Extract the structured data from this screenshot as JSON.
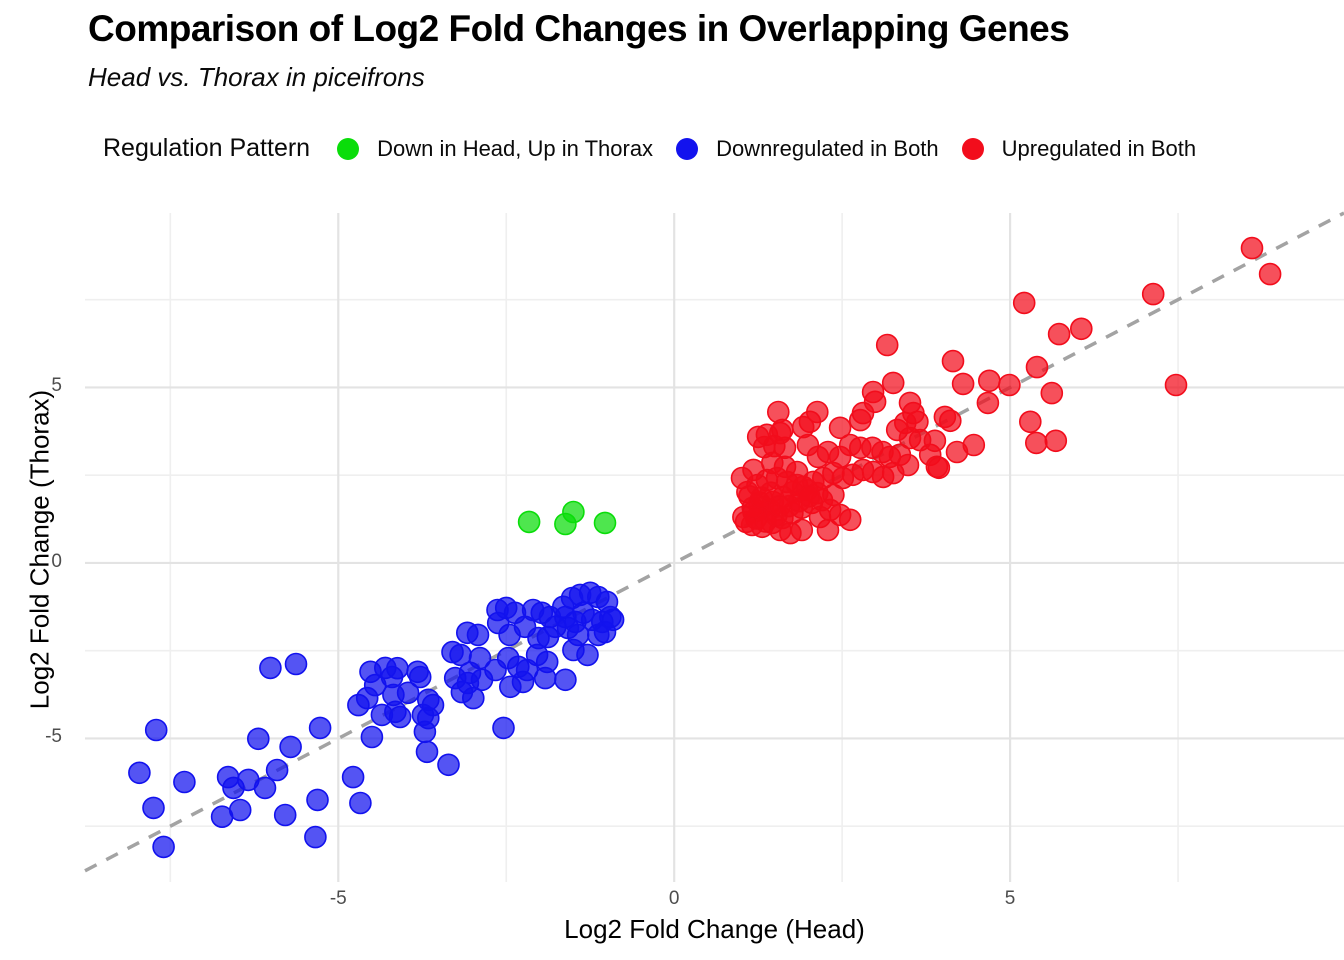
{
  "header": {
    "title": "Comparison of Log2 Fold Changes in Overlapping Genes",
    "subtitle": "Head vs. Thorax in piceifrons"
  },
  "legend": {
    "title": "Regulation Pattern",
    "position": "top",
    "items": [
      {
        "label": "Down in Head, Up in Thorax",
        "color": "#0ADD0A"
      },
      {
        "label": "Downregulated in Both",
        "color": "#1212EE"
      },
      {
        "label": "Upregulated in Both",
        "color": "#F20D1C"
      }
    ]
  },
  "chart_data": {
    "type": "scatter",
    "title": "Comparison of Log2 Fold Changes in Overlapping Genes",
    "subtitle": "Head vs. Thorax in piceifrons",
    "xlabel": "Log2 Fold Change (Head)",
    "ylabel": "Log2 Fold Change (Thorax)",
    "xlim": [
      -8.77,
      9.97
    ],
    "ylim": [
      -9.09,
      9.97
    ],
    "x_major_ticks": [
      -5,
      0,
      5
    ],
    "y_major_ticks": [
      5,
      0,
      -5
    ],
    "x_minor_ticks": [
      -7.5,
      -2.5,
      2.5,
      7.5
    ],
    "y_minor_ticks": [
      7.5,
      2.5,
      -2.5,
      -7.5
    ],
    "grid": true,
    "legend_position": "top",
    "point_radius_px": 10.5,
    "point_alpha": 0.72,
    "major_grid_color": "#e3e3e3",
    "minor_grid_color": "#efefef",
    "tick_label_color": "#4d4d4d",
    "reference_line": {
      "type": "identity y=x",
      "style": "dashed",
      "color": "#a3a3a3"
    },
    "series": [
      {
        "name": "Down in Head, Up in Thorax",
        "color": "#0ADD0A",
        "points": [
          [
            -2.16,
            1.17
          ],
          [
            -1.62,
            1.11
          ],
          [
            -1.5,
            1.45
          ],
          [
            -1.03,
            1.14
          ]
        ]
      },
      {
        "name": "Downregulated in Both",
        "color": "#1212EE",
        "points": [
          [
            -6.01,
            -2.99
          ],
          [
            -5.63,
            -2.88
          ],
          [
            -7.71,
            -4.76
          ],
          [
            -6.19,
            -5.01
          ],
          [
            -5.71,
            -5.24
          ],
          [
            -5.27,
            -4.7
          ],
          [
            -7.96,
            -5.98
          ],
          [
            -7.29,
            -6.24
          ],
          [
            -6.64,
            -6.1
          ],
          [
            -6.56,
            -6.41
          ],
          [
            -6.34,
            -6.18
          ],
          [
            -6.09,
            -6.41
          ],
          [
            -5.91,
            -5.9
          ],
          [
            -7.75,
            -6.98
          ],
          [
            -6.73,
            -7.23
          ],
          [
            -6.46,
            -7.04
          ],
          [
            -5.79,
            -7.18
          ],
          [
            -5.31,
            -6.75
          ],
          [
            -5.34,
            -7.81
          ],
          [
            -7.6,
            -8.09
          ],
          [
            -4.78,
            -6.1
          ],
          [
            -4.67,
            -6.84
          ],
          [
            -4.52,
            -3.1
          ],
          [
            -4.3,
            -2.99
          ],
          [
            -4.45,
            -3.48
          ],
          [
            -4.2,
            -3.25
          ],
          [
            -4.57,
            -3.85
          ],
          [
            -4.7,
            -4.05
          ],
          [
            -4.35,
            -4.33
          ],
          [
            -4.18,
            -3.76
          ],
          [
            -4.08,
            -4.39
          ],
          [
            -4.5,
            -4.96
          ],
          [
            -4.12,
            -3.0
          ],
          [
            -3.96,
            -3.7
          ],
          [
            -4.15,
            -4.24
          ],
          [
            -2.5,
            -1.28
          ],
          [
            -2.37,
            -1.42
          ],
          [
            -2.1,
            -1.34
          ],
          [
            -1.97,
            -1.42
          ],
          [
            -2.62,
            -1.71
          ],
          [
            -2.45,
            -2.05
          ],
          [
            -2.22,
            -1.82
          ],
          [
            -2.02,
            -2.14
          ],
          [
            -1.85,
            -1.54
          ],
          [
            -1.65,
            -1.25
          ],
          [
            -1.52,
            -1.0
          ],
          [
            -1.4,
            -0.91
          ],
          [
            -1.25,
            -0.85
          ],
          [
            -1.13,
            -0.97
          ],
          [
            -1.0,
            -1.11
          ],
          [
            -0.95,
            -1.54
          ],
          [
            -1.07,
            -1.68
          ],
          [
            -1.22,
            -1.62
          ],
          [
            -1.35,
            -1.42
          ],
          [
            -1.47,
            -1.68
          ],
          [
            -1.58,
            -1.85
          ],
          [
            -1.43,
            -2.05
          ],
          [
            -1.13,
            -2.05
          ],
          [
            -1.03,
            -1.97
          ],
          [
            -1.62,
            -1.54
          ],
          [
            -1.77,
            -1.82
          ],
          [
            -1.88,
            -2.11
          ],
          [
            -1.5,
            -2.48
          ],
          [
            -1.29,
            -2.62
          ],
          [
            -2.63,
            -1.34
          ],
          [
            -3.08,
            -1.99
          ],
          [
            -2.92,
            -2.05
          ],
          [
            -3.3,
            -2.54
          ],
          [
            -3.18,
            -2.62
          ],
          [
            -2.89,
            -2.71
          ],
          [
            -3.04,
            -3.13
          ],
          [
            -2.86,
            -3.33
          ],
          [
            -2.66,
            -3.05
          ],
          [
            -2.47,
            -2.71
          ],
          [
            -2.32,
            -2.96
          ],
          [
            -2.19,
            -3.05
          ],
          [
            -2.04,
            -2.62
          ],
          [
            -1.89,
            -2.82
          ],
          [
            -1.92,
            -3.28
          ],
          [
            -2.25,
            -3.39
          ],
          [
            -2.44,
            -3.53
          ],
          [
            -1.62,
            -3.33
          ],
          [
            -3.82,
            -3.1
          ],
          [
            -3.78,
            -3.25
          ],
          [
            -3.66,
            -3.9
          ],
          [
            -3.59,
            -4.05
          ],
          [
            -3.74,
            -4.33
          ],
          [
            -3.66,
            -4.42
          ],
          [
            -3.26,
            -3.28
          ],
          [
            -3.07,
            -3.42
          ],
          [
            -3.16,
            -3.68
          ],
          [
            -2.99,
            -3.85
          ],
          [
            -3.71,
            -4.81
          ],
          [
            -3.68,
            -5.38
          ],
          [
            -3.36,
            -5.75
          ],
          [
            -2.54,
            -4.7
          ],
          [
            -0.91,
            -1.62
          ]
        ]
      },
      {
        "name": "Upregulated in Both",
        "color": "#F20D1C",
        "points": [
          [
            1.01,
            2.42
          ],
          [
            1.18,
            2.65
          ],
          [
            1.34,
            3.3
          ],
          [
            1.49,
            3.33
          ],
          [
            1.65,
            3.28
          ],
          [
            1.46,
            2.85
          ],
          [
            1.65,
            2.74
          ],
          [
            1.83,
            2.59
          ],
          [
            1.99,
            3.36
          ],
          [
            2.14,
            3.02
          ],
          [
            2.29,
            3.16
          ],
          [
            2.47,
            3.02
          ],
          [
            2.62,
            3.36
          ],
          [
            2.77,
            3.28
          ],
          [
            2.95,
            3.28
          ],
          [
            3.1,
            3.16
          ],
          [
            3.21,
            3.02
          ],
          [
            3.36,
            3.08
          ],
          [
            3.48,
            2.79
          ],
          [
            3.26,
            2.56
          ],
          [
            3.11,
            2.45
          ],
          [
            2.96,
            2.59
          ],
          [
            2.81,
            2.65
          ],
          [
            2.66,
            2.51
          ],
          [
            2.51,
            2.42
          ],
          [
            2.37,
            2.56
          ],
          [
            2.22,
            2.42
          ],
          [
            2.07,
            2.31
          ],
          [
            1.92,
            2.17
          ],
          [
            1.77,
            2.02
          ],
          [
            1.62,
            1.88
          ],
          [
            1.47,
            1.74
          ],
          [
            1.32,
            1.6
          ],
          [
            1.18,
            1.45
          ],
          [
            1.03,
            1.31
          ],
          [
            1.16,
            1.08
          ],
          [
            1.31,
            1.03
          ],
          [
            1.46,
            1.14
          ],
          [
            1.61,
            1.28
          ],
          [
            1.76,
            1.42
          ],
          [
            1.9,
            1.57
          ],
          [
            2.05,
            1.71
          ],
          [
            2.2,
            1.79
          ],
          [
            2.37,
            1.94
          ],
          [
            1.38,
            2.36
          ],
          [
            1.24,
            2.22
          ],
          [
            1.09,
            2.02
          ],
          [
            1.53,
            2.42
          ],
          [
            1.68,
            2.31
          ],
          [
            1.83,
            2.22
          ],
          [
            1.98,
            2.08
          ],
          [
            2.13,
            1.99
          ],
          [
            1.58,
            0.94
          ],
          [
            1.73,
            0.85
          ],
          [
            1.9,
            0.94
          ],
          [
            2.17,
            1.31
          ],
          [
            2.32,
            1.51
          ],
          [
            2.47,
            1.37
          ],
          [
            2.62,
            1.23
          ],
          [
            2.29,
            0.94
          ],
          [
            3.51,
            3.56
          ],
          [
            3.66,
            3.5
          ],
          [
            3.81,
            3.08
          ],
          [
            3.91,
            2.74
          ],
          [
            1.25,
            3.59
          ],
          [
            1.38,
            3.65
          ],
          [
            1.58,
            3.7
          ],
          [
            1.12,
            1.9
          ],
          [
            1.27,
            1.72
          ],
          [
            1.42,
            1.52
          ],
          [
            1.22,
            1.27
          ],
          [
            1.36,
            1.18
          ],
          [
            1.52,
            1.35
          ],
          [
            1.07,
            1.17
          ],
          [
            1.17,
            1.57
          ],
          [
            1.3,
            1.86
          ],
          [
            1.44,
            2.0
          ],
          [
            1.57,
            1.62
          ],
          [
            1.71,
            1.62
          ],
          [
            1.86,
            1.76
          ],
          [
            2.01,
            1.9
          ],
          [
            3.17,
            6.21
          ],
          [
            3.26,
            5.13
          ],
          [
            2.96,
            4.87
          ],
          [
            2.99,
            4.59
          ],
          [
            1.55,
            4.3
          ],
          [
            2.13,
            4.3
          ],
          [
            2.02,
            4.02
          ],
          [
            2.81,
            4.27
          ],
          [
            2.77,
            4.07
          ],
          [
            3.51,
            4.56
          ],
          [
            3.56,
            4.27
          ],
          [
            3.44,
            3.99
          ],
          [
            3.62,
            4.02
          ],
          [
            1.92,
            3.87
          ],
          [
            2.47,
            3.85
          ],
          [
            1.61,
            3.79
          ],
          [
            4.03,
            4.16
          ],
          [
            3.32,
            3.79
          ],
          [
            8.6,
            8.97
          ],
          [
            8.87,
            8.23
          ],
          [
            7.13,
            7.66
          ],
          [
            5.21,
            7.41
          ],
          [
            5.73,
            6.52
          ],
          [
            6.06,
            6.67
          ],
          [
            4.15,
            5.75
          ],
          [
            4.3,
            5.1
          ],
          [
            4.69,
            5.19
          ],
          [
            4.67,
            4.56
          ],
          [
            4.99,
            5.07
          ],
          [
            5.4,
            5.58
          ],
          [
            5.62,
            4.84
          ],
          [
            7.47,
            5.07
          ],
          [
            4.11,
            4.05
          ],
          [
            3.88,
            3.48
          ],
          [
            4.21,
            3.16
          ],
          [
            4.46,
            3.36
          ],
          [
            3.94,
            2.71
          ],
          [
            5.3,
            4.02
          ],
          [
            5.39,
            3.42
          ],
          [
            5.68,
            3.48
          ]
        ]
      }
    ]
  }
}
